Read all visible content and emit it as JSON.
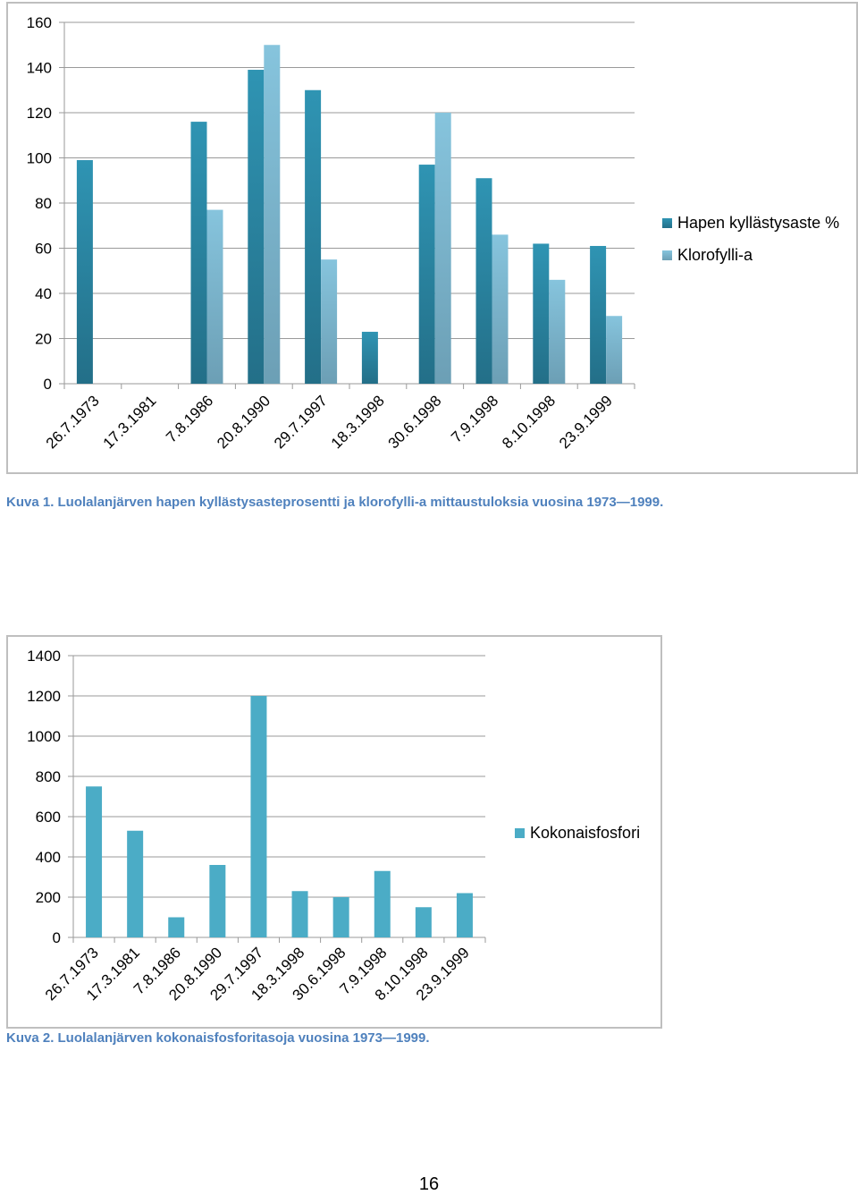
{
  "chart_data": [
    {
      "type": "bar",
      "categories": [
        "26.7.1973",
        "17.3.1981",
        "7.8.1986",
        "20.8.1990",
        "29.7.1997",
        "18.3.1998",
        "30.6.1998",
        "7.9.1998",
        "8.10.1998",
        "23.9.1999"
      ],
      "series": [
        {
          "name": "Hapen kyllästysaste %",
          "values": [
            99,
            null,
            116,
            139,
            130,
            23,
            97,
            91,
            62,
            61
          ],
          "color": "#2f94b3"
        },
        {
          "name": "Klorofylli-a",
          "values": [
            null,
            null,
            77,
            150,
            55,
            null,
            120,
            66,
            46,
            30
          ],
          "color": "#86c4dd"
        }
      ],
      "ylim": [
        0,
        160
      ],
      "yticks": [
        0,
        20,
        40,
        60,
        80,
        100,
        120,
        140,
        160
      ],
      "grid": true,
      "legend": "right"
    },
    {
      "type": "bar",
      "categories": [
        "26.7.1973",
        "17.3.1981",
        "7.8.1986",
        "20.8.1990",
        "29.7.1997",
        "18.3.1998",
        "30.6.1998",
        "7.9.1998",
        "8.10.1998",
        "23.9.1999"
      ],
      "series": [
        {
          "name": "Kokonaisfosfori",
          "values": [
            750,
            530,
            100,
            360,
            1200,
            230,
            200,
            330,
            150,
            220
          ],
          "color": "#4bacc6"
        }
      ],
      "ylim": [
        0,
        1400
      ],
      "yticks": [
        0,
        200,
        400,
        600,
        800,
        1000,
        1200,
        1400
      ],
      "grid": true,
      "legend": "right"
    }
  ],
  "captions": {
    "caption1": "Kuva 1. Luolalanjärven hapen kyllästysasteprosentti ja klorofylli-a mittaustuloksia vuosina 1973—1999.",
    "caption2": "Kuva 2. Luolalanjärven kokonaisfosforitasoja vuosina 1973—1999."
  },
  "page_number": "16"
}
